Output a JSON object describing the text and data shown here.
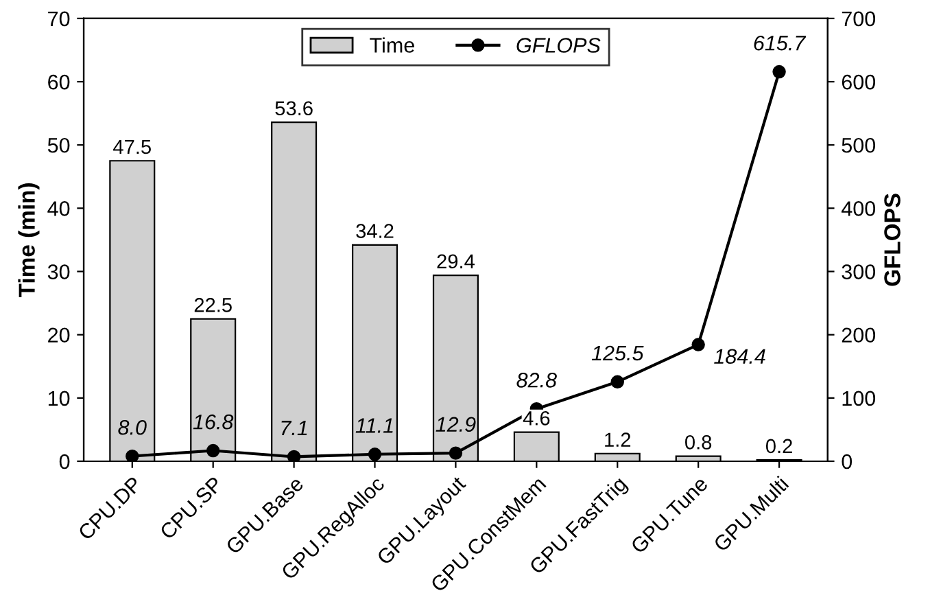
{
  "chart_data": {
    "type": "bar",
    "ylabel": "Time (min)",
    "y2label": "GFLOPS",
    "categories": [
      "CPU.DP",
      "CPU.SP",
      "GPU.Base",
      "GPU.RegAlloc",
      "GPU.Layout",
      "GPU.ConstMem",
      "GPU.FastTrig",
      "GPU.Tune",
      "GPU.Multi"
    ],
    "series": [
      {
        "name": "Time",
        "color": "#d0d0d0",
        "values": [
          47.5,
          22.5,
          53.6,
          34.2,
          29.4,
          4.6,
          1.2,
          0.8,
          0.2
        ],
        "value_labels": [
          "47.5",
          "22.5",
          "53.6",
          "34.2",
          "29.4",
          "4.6",
          "1.2",
          "0.8",
          "0.2"
        ]
      },
      {
        "name": "GFLOPS",
        "type": "line",
        "axis": "y2",
        "color": "#000000",
        "marker": "circle",
        "values": [
          8.0,
          16.8,
          7.1,
          11.1,
          12.9,
          82.8,
          125.5,
          184.4,
          615.7
        ],
        "value_labels": [
          "8.0",
          "16.8",
          "7.1",
          "11.1",
          "12.9",
          "82.8",
          "125.5",
          "184.4",
          "615.7"
        ]
      }
    ],
    "ylim": [
      0,
      70
    ],
    "yticks": [
      0,
      10,
      20,
      30,
      40,
      50,
      60,
      70
    ],
    "y2lim": [
      0,
      700
    ],
    "y2ticks": [
      0,
      100,
      200,
      300,
      400,
      500,
      600,
      700
    ],
    "grid": false,
    "legend": "top"
  }
}
